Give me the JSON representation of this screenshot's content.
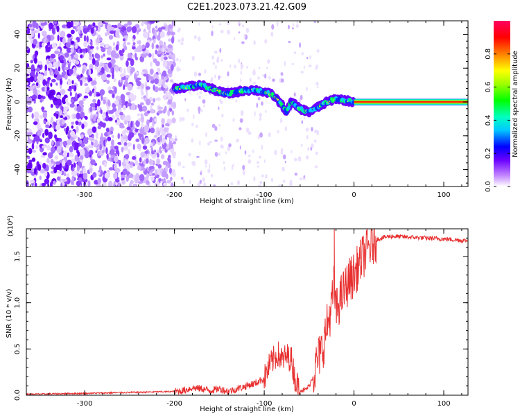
{
  "figure": {
    "title": "C2E1.2023.073.21.42.G09"
  },
  "chart_data": [
    {
      "type": "heatmap",
      "name": "spectrogram",
      "xlabel": "Height of straight line (km)",
      "ylabel": "Frequency (Hz)",
      "xlim": [
        -365,
        127
      ],
      "ylim": [
        -50,
        48
      ],
      "xticks": [
        -300,
        -200,
        -100,
        0,
        100
      ],
      "yticks": [
        -40,
        -20,
        0,
        20,
        40
      ],
      "grid": false,
      "colorbar": {
        "label": "Normalized spectral amplitude",
        "range": [
          0,
          1
        ],
        "ticks": [
          0.0,
          0.2,
          0.4,
          0.6,
          0.8
        ],
        "colormap": "rainbow (white-violet-blue-cyan-green-yellow-red-magenta)"
      },
      "ridge": {
        "x": [
          -200,
          -185,
          -170,
          -160,
          -150,
          -140,
          -130,
          -120,
          -110,
          -100,
          -90,
          -80,
          -75,
          -70,
          -60,
          -50,
          -40,
          -30,
          -20,
          -10,
          0,
          20,
          60,
          100,
          127
        ],
        "y": [
          8,
          9,
          10,
          8,
          6,
          5,
          6,
          7,
          7,
          6,
          4,
          -2,
          -6,
          0,
          -4,
          -6,
          -3,
          0,
          2,
          1,
          0,
          0,
          0,
          0,
          0
        ]
      },
      "noise_region_x": [
        -365,
        -200
      ]
    },
    {
      "type": "line",
      "name": "snr",
      "xlabel": "Height of straight line (km)",
      "ylabel": "SNR (10 * v/v)",
      "y_multiplier": "(x10⁴)",
      "xlim": [
        -365,
        127
      ],
      "ylim": [
        0,
        1.8
      ],
      "xticks": [
        -300,
        -200,
        -100,
        0,
        100
      ],
      "yticks": [
        0.0,
        0.5,
        1.0,
        1.5
      ],
      "series": [
        {
          "color": "#e83030",
          "x": [
            -365,
            -300,
            -250,
            -200,
            -190,
            -180,
            -170,
            -160,
            -150,
            -140,
            -130,
            -120,
            -110,
            -100,
            -95,
            -90,
            -85,
            -80,
            -75,
            -70,
            -65,
            -60,
            -55,
            -50,
            -45,
            -40,
            -35,
            -30,
            -25,
            -22,
            -20,
            -15,
            -10,
            -5,
            0,
            5,
            10,
            15,
            20,
            25,
            30,
            40,
            60,
            80,
            100,
            127
          ],
          "y": [
            0.01,
            0.02,
            0.03,
            0.04,
            0.05,
            0.08,
            0.07,
            0.05,
            0.07,
            0.04,
            0.07,
            0.1,
            0.13,
            0.18,
            0.3,
            0.38,
            0.45,
            0.38,
            0.42,
            0.4,
            0.15,
            0.06,
            0.05,
            0.1,
            0.22,
            0.4,
            0.5,
            0.75,
            0.95,
            1.2,
            0.9,
            1.05,
            1.15,
            1.25,
            1.3,
            1.4,
            1.5,
            1.58,
            1.63,
            1.68,
            1.7,
            1.72,
            1.71,
            1.7,
            1.69,
            1.67
          ]
        }
      ]
    }
  ]
}
